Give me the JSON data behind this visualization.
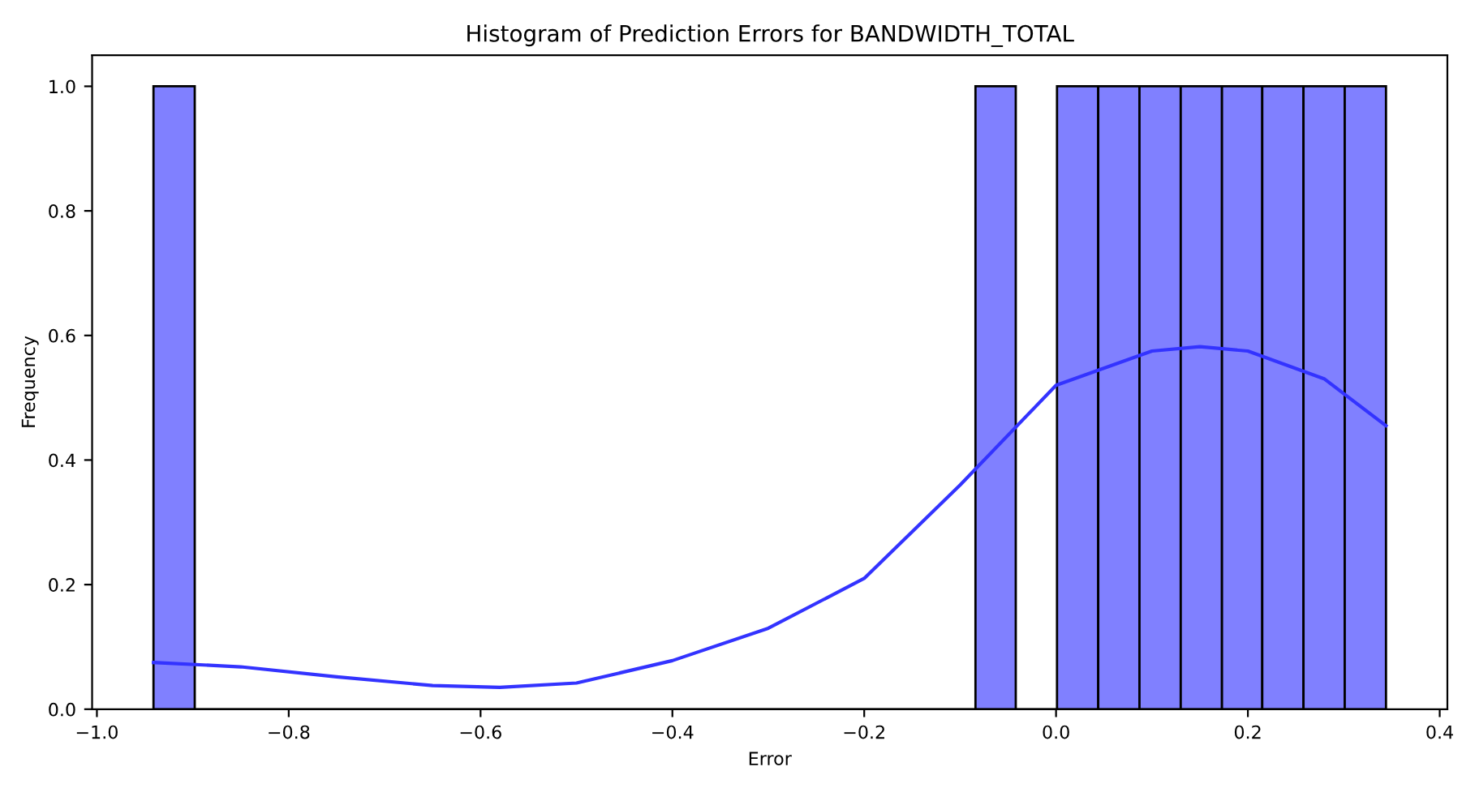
{
  "chart_data": {
    "type": "histogram",
    "title": "Histogram of Prediction Errors for BANDWIDTH_TOTAL",
    "xlabel": "Error",
    "ylabel": "Frequency",
    "bins": [
      -0.941,
      -0.898,
      -0.084,
      -0.042,
      0.001,
      0.044,
      0.087,
      0.13,
      0.173,
      0.215,
      0.258,
      0.301,
      0.344
    ],
    "values": [
      1,
      0,
      1,
      0,
      1,
      1,
      1,
      1,
      1,
      1,
      1,
      1
    ],
    "color": "#8080ff",
    "series": [
      {
        "type": "line",
        "color": "#3333ff",
        "x": [
          -0.941,
          -0.85,
          -0.75,
          -0.65,
          -0.58,
          -0.5,
          -0.4,
          -0.3,
          -0.2,
          -0.1,
          0.0,
          0.1,
          0.15,
          0.2,
          0.28,
          0.344
        ],
        "values": [
          0.075,
          0.068,
          0.052,
          0.038,
          0.035,
          0.042,
          0.078,
          0.13,
          0.21,
          0.36,
          0.52,
          0.575,
          0.582,
          0.575,
          0.53,
          0.455
        ]
      }
    ],
    "xlim": [
      -1.005,
      0.408
    ],
    "xticks": [
      {
        "value": -1.0,
        "label": "−1.0"
      },
      {
        "value": -0.8,
        "label": "−0.8"
      },
      {
        "value": -0.6,
        "label": "−0.6"
      },
      {
        "value": -0.4,
        "label": "−0.4"
      },
      {
        "value": -0.2,
        "label": "−0.2"
      },
      {
        "value": 0.0,
        "label": "0.0"
      },
      {
        "value": 0.2,
        "label": "0.2"
      },
      {
        "value": 0.4,
        "label": "0.4"
      }
    ],
    "ylim": [
      0,
      1.05
    ],
    "yticks": [
      {
        "value": 0,
        "label": "0.0"
      },
      {
        "value": 0.2,
        "label": "0.2"
      },
      {
        "value": 0.4,
        "label": "0.4"
      },
      {
        "value": 0.6,
        "label": "0.6"
      },
      {
        "value": 0.8,
        "label": "0.8"
      },
      {
        "value": 1.0,
        "label": "1.0"
      }
    ],
    "grid": false
  }
}
